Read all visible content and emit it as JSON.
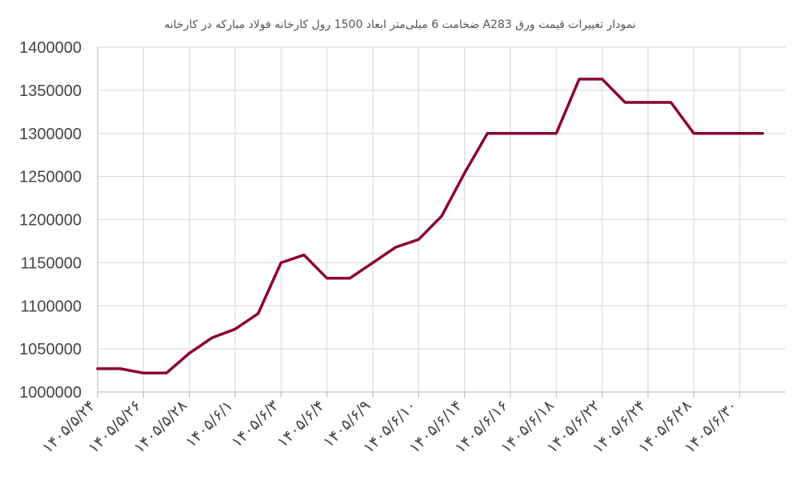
{
  "chart_data": {
    "type": "line",
    "title": "نمودار تغییرات قیمت ورق A283  ضخامت 6 میلی‌متر ابعاد 1500 رول کارخانه فولاد مبارکه در کارخانه",
    "xlabel": "",
    "ylabel": "",
    "ylim": [
      1000000,
      1400000
    ],
    "y_ticks": [
      1000000,
      1050000,
      1100000,
      1150000,
      1200000,
      1250000,
      1300000,
      1350000,
      1400000
    ],
    "x_tick_labels": [
      "۱۴۰۵/۵/۲۴",
      "۱۴۰۵/۵/۲۶",
      "۱۴۰۵/۵/۲۸",
      "۱۴۰۵/۶/۱",
      "۱۴۰۵/۶/۳",
      "۱۴۰۵/۶/۴",
      "۱۴۰۵/۶/۹",
      "۱۴۰۵/۶/۱۰",
      "۱۴۰۵/۶/۱۴",
      "۱۴۰۵/۶/۱۶",
      "۱۴۰۵/۶/۱۸",
      "۱۴۰۵/۶/۲۲",
      "۱۴۰۵/۶/۲۴",
      "۱۴۰۵/۶/۲۸",
      "۱۴۰۵/۶/۳۰"
    ],
    "grid": true,
    "legend": "none",
    "series": [
      {
        "color": "#8b0033",
        "values": [
          1027000,
          1027000,
          1022000,
          1022000,
          1045000,
          1063000,
          1073000,
          1091000,
          1150000,
          1159000,
          1132000,
          1132000,
          1150000,
          1168000,
          1177000,
          1204000,
          1254000,
          1300000,
          1300000,
          1300000,
          1300000,
          1363000,
          1363000,
          1336000,
          1336000,
          1336000,
          1300000,
          1300000,
          1300000,
          1300000
        ]
      }
    ]
  }
}
